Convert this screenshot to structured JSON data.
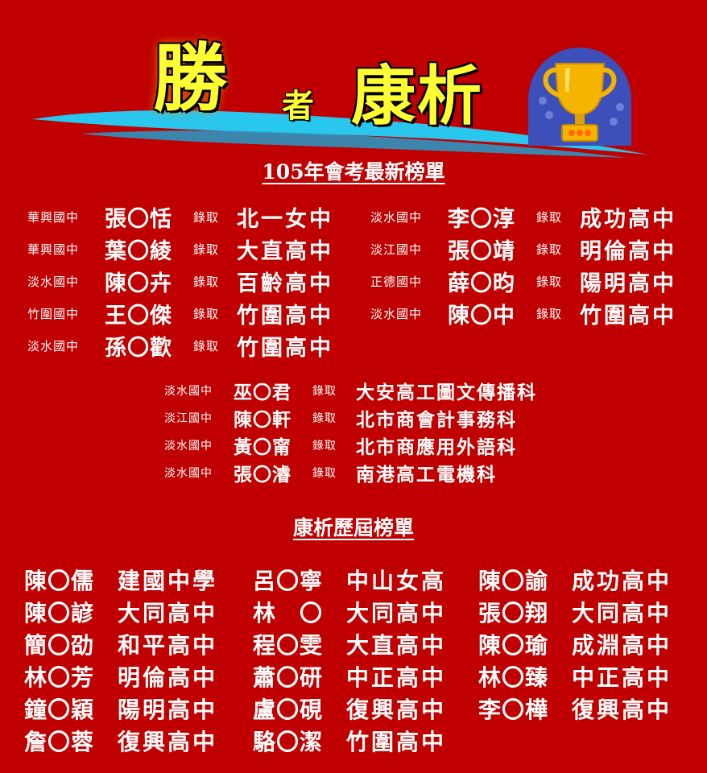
{
  "header": {
    "title_win": "勝",
    "title_mid": "者",
    "title_name": "康析"
  },
  "colors": {
    "background": "#c00000",
    "title_yellow": "#ffff33",
    "swoosh_blue": "#29c6ee",
    "trophy_gold": "#f5b400",
    "badge_blue": "#3d4fb8"
  },
  "icons": [
    "trophy-icon"
  ],
  "section1": {
    "title": "105年會考最新榜單",
    "left": [
      {
        "school": "華興國中",
        "name": "張〇恬",
        "admit": "錄取",
        "dest": "北一女中"
      },
      {
        "school": "華興國中",
        "name": "葉〇綾",
        "admit": "錄取",
        "dest": "大直高中"
      },
      {
        "school": "淡水國中",
        "name": "陳〇卉",
        "admit": "錄取",
        "dest": "百齡高中"
      },
      {
        "school": "竹圍國中",
        "name": "王〇傑",
        "admit": "錄取",
        "dest": "竹圍高中"
      },
      {
        "school": "淡水國中",
        "name": "孫〇歡",
        "admit": "錄取",
        "dest": "竹圍高中"
      }
    ],
    "right": [
      {
        "school": "淡水國中",
        "name": "李〇淳",
        "admit": "錄取",
        "dest": "成功高中"
      },
      {
        "school": "淡江國中",
        "name": "張〇靖",
        "admit": "錄取",
        "dest": "明倫高中"
      },
      {
        "school": "正德國中",
        "name": "薛〇昀",
        "admit": "錄取",
        "dest": "陽明高中"
      },
      {
        "school": "淡水國中",
        "name": "陳〇中",
        "admit": "錄取",
        "dest": "竹圍高中"
      }
    ],
    "vocational": [
      {
        "school": "淡水國中",
        "name": "巫〇君",
        "admit": "錄取",
        "dest": "大安高工圖文傳播科"
      },
      {
        "school": "淡江國中",
        "name": "陳〇軒",
        "admit": "錄取",
        "dest": "北市商會計事務科"
      },
      {
        "school": "淡水國中",
        "name": "黃〇甯",
        "admit": "錄取",
        "dest": "北市商應用外語科"
      },
      {
        "school": "淡水國中",
        "name": "張〇濬",
        "admit": "錄取",
        "dest": "南港高工電機科"
      }
    ]
  },
  "section2": {
    "title": "康析歷屆榜單",
    "col1": [
      {
        "name": "陳〇儒",
        "dest": "建國中學"
      },
      {
        "name": "陳〇諺",
        "dest": "大同高中"
      },
      {
        "name": "簡〇劭",
        "dest": "和平高中"
      },
      {
        "name": "林〇芳",
        "dest": "明倫高中"
      },
      {
        "name": "鐘〇穎",
        "dest": "陽明高中"
      },
      {
        "name": "詹〇蓉",
        "dest": "復興高中"
      }
    ],
    "col2": [
      {
        "name": "呂〇寧",
        "dest": "中山女高"
      },
      {
        "name": "林　〇",
        "dest": "大同高中"
      },
      {
        "name": "程〇雯",
        "dest": "大直高中"
      },
      {
        "name": "蕭〇研",
        "dest": "中正高中"
      },
      {
        "name": "盧〇硯",
        "dest": "復興高中"
      },
      {
        "name": "駱〇潔",
        "dest": "竹圍高中"
      }
    ],
    "col3": [
      {
        "name": "陳〇諭",
        "dest": "成功高中"
      },
      {
        "name": "張〇翔",
        "dest": "大同高中"
      },
      {
        "name": "陳〇瑜",
        "dest": "成淵高中"
      },
      {
        "name": "林〇臻",
        "dest": "中正高中"
      },
      {
        "name": "李〇樺",
        "dest": "復興高中"
      }
    ]
  }
}
